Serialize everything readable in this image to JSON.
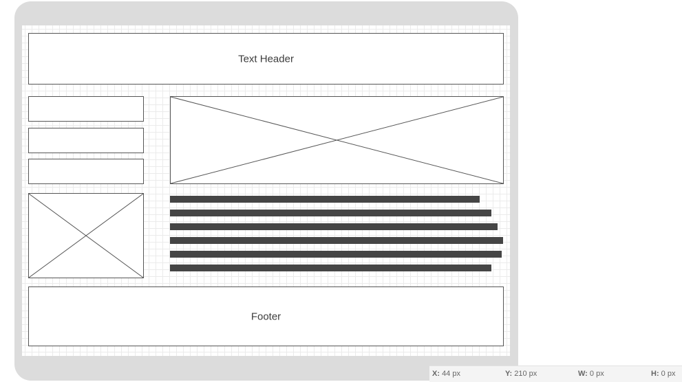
{
  "wireframe": {
    "header": {
      "label": "Text Header"
    },
    "footer": {
      "label": "Footer"
    },
    "nav_items": 3,
    "placeholder_icon": "image-placeholder-icon",
    "colors": {
      "frame": "#dcdcdc",
      "grid_line": "#ebebeb",
      "box_border": "#555555",
      "text_line": "#454545"
    }
  },
  "statusbar": {
    "x_label": "X:",
    "x_value": "44 px",
    "y_label": "Y:",
    "y_value": "210 px",
    "w_label": "W:",
    "w_value": "0 px",
    "h_label": "H:",
    "h_value": "0 px"
  }
}
